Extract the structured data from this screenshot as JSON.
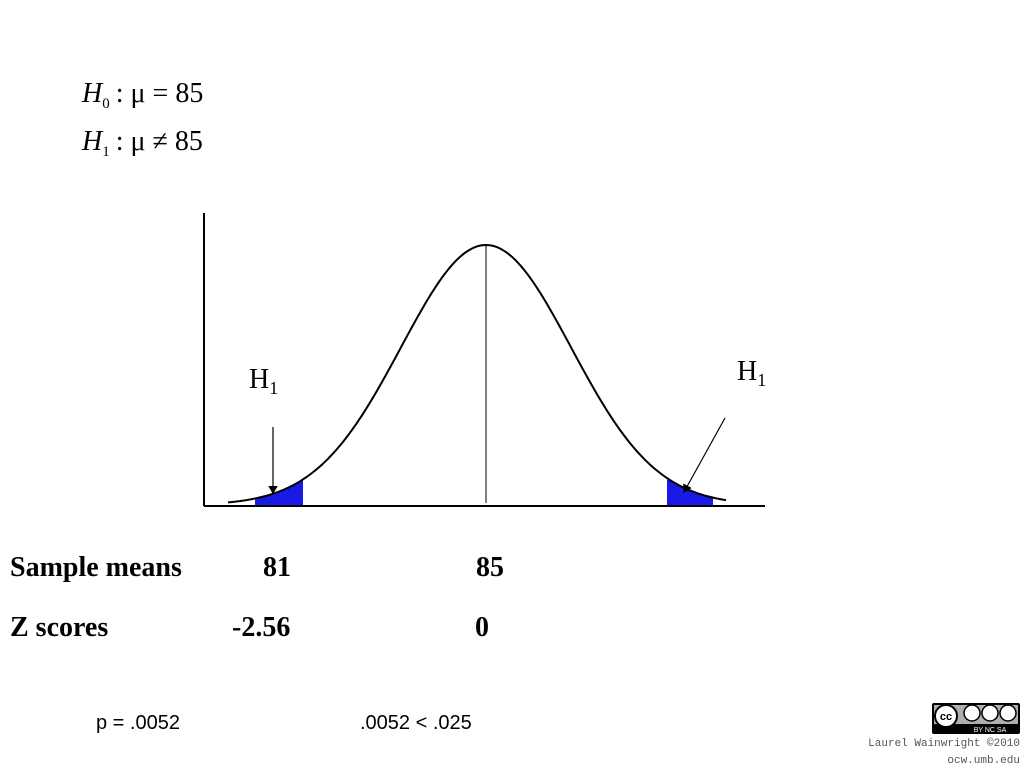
{
  "hypotheses": [
    {
      "symbol": "H",
      "subscript": "0",
      "statement": ": μ = 85"
    },
    {
      "symbol": "H",
      "subscript": "1",
      "statement": ": μ ≠ 85"
    }
  ],
  "diagram": {
    "labels": [
      {
        "symbol": "H",
        "subscript": "1"
      },
      {
        "symbol": "H",
        "subscript": "1"
      }
    ]
  },
  "rows": [
    {
      "label": "Sample means",
      "values": [
        "81",
        "85"
      ]
    },
    {
      "label": "Z scores",
      "values": [
        "-2.56",
        "0"
      ]
    }
  ],
  "footer": {
    "p_value": "p = .0052",
    "comparison": ".0052 < .025"
  },
  "credits": {
    "license": "BY NC SA",
    "author": "Laurel Wainwright ©2010",
    "site": "ocw.umb.edu"
  }
}
